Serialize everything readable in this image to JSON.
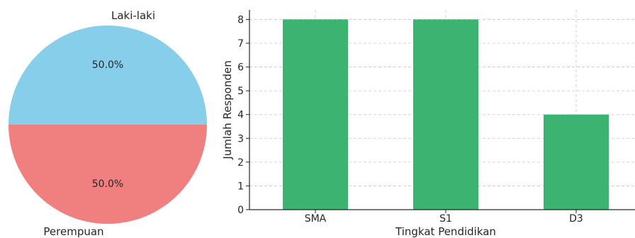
{
  "chart_data": [
    {
      "type": "pie",
      "labels": [
        "Laki-laki",
        "Perempuan"
      ],
      "values": [
        50,
        50
      ],
      "pct_labels": [
        "50.0%",
        "50.0%"
      ],
      "colors": [
        "#87ceeb",
        "#f08080"
      ]
    },
    {
      "type": "bar",
      "categories": [
        "SMA",
        "S1",
        "D3"
      ],
      "values": [
        8,
        8,
        4
      ],
      "xlabel": "Tingkat Pendidikan",
      "ylabel": "Jumlah Responden",
      "ylim": [
        0,
        8.4
      ],
      "yticks": [
        "0",
        "1",
        "2",
        "3",
        "4",
        "5",
        "6",
        "7",
        "8"
      ],
      "grid": true,
      "color": "#3cb371"
    }
  ]
}
